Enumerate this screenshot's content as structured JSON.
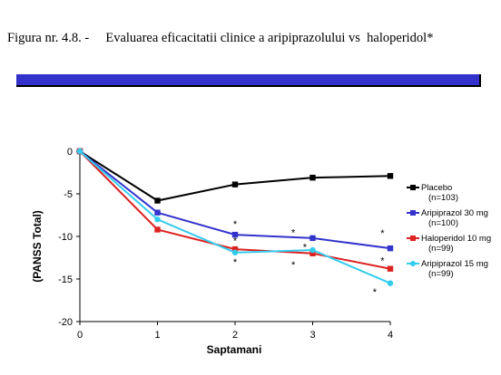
{
  "figure": {
    "caption": "Figura nr. 4.8. -     Evaluarea eficacitatii clinice a aripiprazolului vs  haloperidol*"
  },
  "colors": {
    "banner": "#3333cc",
    "placebo": "#000000",
    "aripiprazol30": "#3333cc",
    "haloperidol10": "#dd2222",
    "aripiprazol15": "#33ccee"
  },
  "chart_data": {
    "type": "line",
    "xlabel": "Saptamani",
    "ylabel": "(PANSS Total)",
    "xlim": [
      0,
      4
    ],
    "ylim": [
      -20,
      0
    ],
    "x_ticks": [
      "0",
      "1",
      "2",
      "3",
      "4"
    ],
    "y_ticks": [
      "0",
      "-5",
      "-10",
      "-15",
      "-20"
    ],
    "grid": false,
    "legend_position": "right",
    "series": [
      {
        "name": "Placebo",
        "n": "(n=103)",
        "color_key": "placebo",
        "x": [
          0,
          1,
          2,
          3,
          4
        ],
        "y": [
          0,
          -5.8,
          -3.9,
          -3.1,
          -2.9
        ]
      },
      {
        "name": "Aripiprazol 30 mg",
        "n": "(n=100)",
        "color_key": "aripiprazol30",
        "x": [
          0,
          1,
          2,
          3,
          4
        ],
        "y": [
          0,
          -7.2,
          -9.8,
          -10.2,
          -11.4
        ]
      },
      {
        "name": "Haloperidol 10 mg",
        "n": "(n=99)",
        "color_key": "haloperidol10",
        "x": [
          0,
          1,
          2,
          3,
          4
        ],
        "y": [
          0,
          -9.2,
          -11.5,
          -12.0,
          -13.8
        ]
      },
      {
        "name": "Aripiprazol 15 mg",
        "n": "(n=99)",
        "color_key": "aripiprazol15",
        "x": [
          0,
          1,
          2,
          3,
          4
        ],
        "y": [
          0,
          -8.0,
          -11.9,
          -11.6,
          -15.5
        ]
      }
    ],
    "annotations": [
      {
        "text": "*",
        "x": 2,
        "y": -8.5
      },
      {
        "text": "*",
        "x": 2,
        "y": -10.5
      },
      {
        "text": "*",
        "x": 2,
        "y": -13.0
      },
      {
        "text": "*",
        "x": 2.75,
        "y": -9.5
      },
      {
        "text": "*",
        "x": 2.75,
        "y": -13.3
      },
      {
        "text": "*",
        "x": 2.9,
        "y": -11.2
      },
      {
        "text": "*",
        "x": 3.9,
        "y": -9.6
      },
      {
        "text": "*",
        "x": 3.9,
        "y": -12.8
      },
      {
        "text": "*",
        "x": 3.8,
        "y": -16.5
      }
    ]
  }
}
